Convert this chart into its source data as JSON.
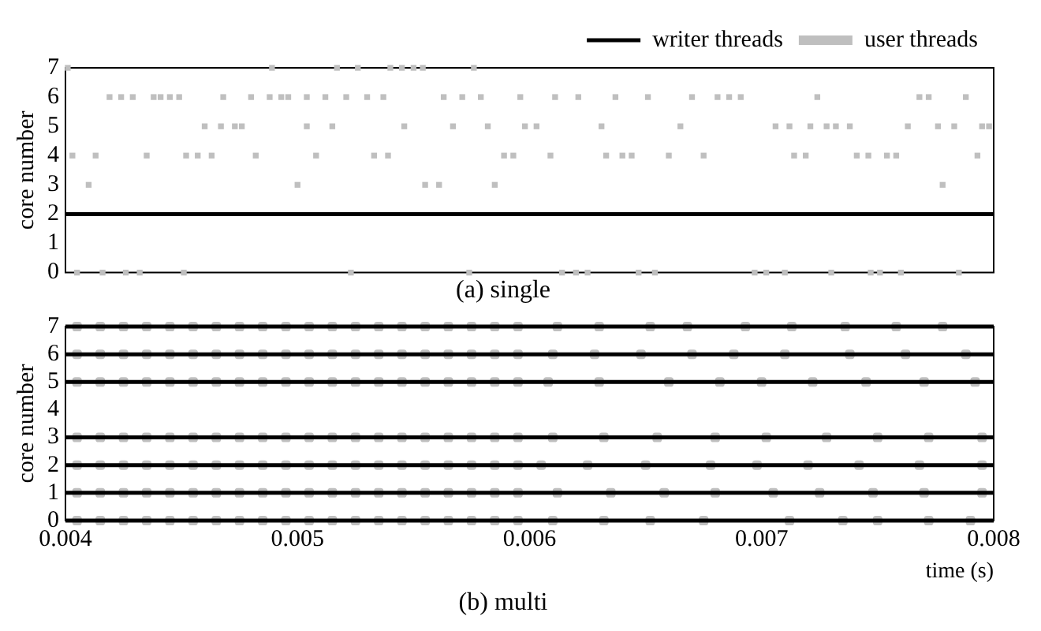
{
  "chart_data": [
    {
      "type": "scatter",
      "title": "(a) single",
      "ylabel": "core number",
      "xlim": [
        0.004,
        0.008
      ],
      "ylim": [
        0,
        7
      ],
      "yticks": [
        0,
        1,
        2,
        3,
        4,
        5,
        6,
        7
      ],
      "tick_labels": "y",
      "grid": false,
      "legend": "top right",
      "series": [
        {
          "name": "writer threads",
          "type": "line",
          "color": "#000000",
          "marker": "none",
          "x": [
            0.004,
            0.008
          ],
          "values": [
            2,
            2
          ]
        },
        {
          "name": "user threads",
          "type": "scatter",
          "color": "#bfbfbf",
          "marker": "square",
          "x": [
            0.00401,
            0.00489,
            0.00517,
            0.00526,
            0.0054,
            0.00545,
            0.0055,
            0.00554,
            0.00576,
            0.00419,
            0.00424,
            0.00429,
            0.00438,
            0.00441,
            0.00445,
            0.00449,
            0.00468,
            0.0048,
            0.00488,
            0.00493,
            0.00496,
            0.00504,
            0.00512,
            0.00521,
            0.0053,
            0.00537,
            0.00563,
            0.00571,
            0.00579,
            0.00596,
            0.00611,
            0.00621,
            0.00637,
            0.00651,
            0.0067,
            0.00681,
            0.00686,
            0.00691,
            0.00724,
            0.00768,
            0.00772,
            0.00788,
            0.0046,
            0.00467,
            0.00473,
            0.00476,
            0.00504,
            0.00515,
            0.00546,
            0.00567,
            0.00582,
            0.00598,
            0.00603,
            0.00631,
            0.00665,
            0.00706,
            0.00712,
            0.00721,
            0.00728,
            0.00732,
            0.00738,
            0.00763,
            0.00776,
            0.00783,
            0.00795,
            0.00798,
            0.00403,
            0.00413,
            0.00435,
            0.00452,
            0.00457,
            0.00463,
            0.00482,
            0.00508,
            0.00533,
            0.00539,
            0.00589,
            0.00593,
            0.00609,
            0.00633,
            0.0064,
            0.00644,
            0.0066,
            0.00675,
            0.00714,
            0.00719,
            0.00741,
            0.00746,
            0.00754,
            0.00758,
            0.00793,
            0.0041,
            0.005,
            0.00555,
            0.00561,
            0.00585,
            0.00778,
            0.00405,
            0.00416,
            0.00426,
            0.00432,
            0.00451,
            0.00523,
            0.00574,
            0.00614,
            0.0062,
            0.00625,
            0.00647,
            0.00654,
            0.00697,
            0.00702,
            0.0071,
            0.0073,
            0.00747,
            0.00751,
            0.0076,
            0.00785
          ],
          "values": [
            7,
            7,
            7,
            7,
            7,
            7,
            7,
            7,
            7,
            6,
            6,
            6,
            6,
            6,
            6,
            6,
            6,
            6,
            6,
            6,
            6,
            6,
            6,
            6,
            6,
            6,
            6,
            6,
            6,
            6,
            6,
            6,
            6,
            6,
            6,
            6,
            6,
            6,
            6,
            6,
            6,
            6,
            5,
            5,
            5,
            5,
            5,
            5,
            5,
            5,
            5,
            5,
            5,
            5,
            5,
            5,
            5,
            5,
            5,
            5,
            5,
            5,
            5,
            5,
            5,
            5,
            4,
            4,
            4,
            4,
            4,
            4,
            4,
            4,
            4,
            4,
            4,
            4,
            4,
            4,
            4,
            4,
            4,
            4,
            4,
            4,
            4,
            4,
            4,
            4,
            4,
            3,
            3,
            3,
            3,
            3,
            3,
            0,
            0,
            0,
            0,
            0,
            0,
            0,
            0,
            0,
            0,
            0,
            0,
            0,
            0,
            0,
            0,
            0,
            0,
            0,
            0
          ]
        }
      ]
    },
    {
      "type": "scatter",
      "title": "(b) multi",
      "xlabel": "time (s)",
      "ylabel": "core number",
      "xlim": [
        0.004,
        0.008
      ],
      "xticks": [
        0.004,
        0.005,
        0.006,
        0.007,
        0.008
      ],
      "ylim": [
        0,
        7
      ],
      "yticks": [
        0,
        1,
        2,
        3,
        4,
        5,
        6,
        7
      ],
      "grid": false,
      "series": [
        {
          "type": "line",
          "color": "#000000",
          "marker": "none",
          "x": [
            0.004,
            0.008
          ],
          "values": [
            0,
            0
          ]
        },
        {
          "type": "line",
          "color": "#000000",
          "marker": "none",
          "x": [
            0.004,
            0.008
          ],
          "values": [
            1,
            1
          ]
        },
        {
          "type": "line",
          "color": "#000000",
          "marker": "none",
          "x": [
            0.004,
            0.008
          ],
          "values": [
            2,
            2
          ]
        },
        {
          "type": "line",
          "color": "#000000",
          "marker": "none",
          "x": [
            0.004,
            0.008
          ],
          "values": [
            3,
            3
          ]
        },
        {
          "type": "line",
          "color": "#000000",
          "marker": "none",
          "x": [
            0.004,
            0.008
          ],
          "values": [
            5,
            5
          ]
        },
        {
          "type": "line",
          "color": "#000000",
          "marker": "none",
          "x": [
            0.004,
            0.008
          ],
          "values": [
            6,
            6
          ]
        },
        {
          "type": "line",
          "color": "#000000",
          "marker": "none",
          "x": [
            0.004,
            0.008
          ],
          "values": [
            7,
            7
          ]
        },
        {
          "type": "scatter",
          "color": "#bfbfbf",
          "marker": "square",
          "x": [
            0.00405,
            0.00415,
            0.00425,
            0.00435,
            0.00445,
            0.00455,
            0.00465,
            0.00475,
            0.00485,
            0.00495,
            0.00505,
            0.00515,
            0.00525,
            0.00535,
            0.00545,
            0.00555,
            0.00565,
            0.00575,
            0.00585,
            0.00595,
            0.0061,
            0.00632,
            0.00652,
            0.00675,
            0.00712,
            0.00735,
            0.0075,
            0.00772,
            0.0079,
            0.00405,
            0.00415,
            0.00425,
            0.00435,
            0.00445,
            0.00455,
            0.00465,
            0.00475,
            0.00485,
            0.00495,
            0.00505,
            0.00515,
            0.00525,
            0.00535,
            0.00545,
            0.00555,
            0.00565,
            0.00575,
            0.00585,
            0.00595,
            0.00612,
            0.00635,
            0.00658,
            0.0068,
            0.00705,
            0.00725,
            0.00748,
            0.0077,
            0.00795,
            0.00405,
            0.00415,
            0.00425,
            0.00435,
            0.00445,
            0.00455,
            0.00465,
            0.00475,
            0.00485,
            0.00495,
            0.00505,
            0.00515,
            0.00525,
            0.00535,
            0.00545,
            0.00555,
            0.00565,
            0.00575,
            0.00585,
            0.00595,
            0.00605,
            0.00625,
            0.0065,
            0.00678,
            0.00698,
            0.0072,
            0.00742,
            0.00768,
            0.00795,
            0.00405,
            0.00415,
            0.00425,
            0.00435,
            0.00445,
            0.00455,
            0.00465,
            0.00475,
            0.00485,
            0.00495,
            0.00505,
            0.00515,
            0.00525,
            0.00535,
            0.00545,
            0.00555,
            0.00565,
            0.00575,
            0.00585,
            0.00595,
            0.0061,
            0.00632,
            0.00655,
            0.0068,
            0.00702,
            0.00728,
            0.0075,
            0.00772,
            0.00795,
            0.00405,
            0.00415,
            0.00425,
            0.00435,
            0.00445,
            0.00455,
            0.00465,
            0.00475,
            0.00485,
            0.00495,
            0.00505,
            0.00515,
            0.00525,
            0.00535,
            0.00545,
            0.00555,
            0.00565,
            0.00575,
            0.00585,
            0.00595,
            0.00608,
            0.0063,
            0.0066,
            0.00682,
            0.007,
            0.00722,
            0.00745,
            0.0077,
            0.00792,
            0.00405,
            0.00415,
            0.00425,
            0.00435,
            0.00445,
            0.00455,
            0.00465,
            0.00475,
            0.00485,
            0.00495,
            0.00505,
            0.00515,
            0.00525,
            0.00535,
            0.00545,
            0.00555,
            0.00565,
            0.00575,
            0.00585,
            0.00595,
            0.0061,
            0.00628,
            0.00648,
            0.0067,
            0.00688,
            0.0071,
            0.00738,
            0.00762,
            0.00788,
            0.00405,
            0.00415,
            0.00425,
            0.00435,
            0.00445,
            0.00455,
            0.00465,
            0.00475,
            0.00485,
            0.00495,
            0.00505,
            0.00515,
            0.00525,
            0.00535,
            0.00545,
            0.00555,
            0.00565,
            0.00575,
            0.00585,
            0.00595,
            0.00612,
            0.0063,
            0.00652,
            0.00668,
            0.00693,
            0.00713,
            0.00736,
            0.00758,
            0.00778
          ],
          "values": [
            0,
            0,
            0,
            0,
            0,
            0,
            0,
            0,
            0,
            0,
            0,
            0,
            0,
            0,
            0,
            0,
            0,
            0,
            0,
            0,
            0,
            0,
            0,
            0,
            0,
            0,
            0,
            0,
            0,
            1,
            1,
            1,
            1,
            1,
            1,
            1,
            1,
            1,
            1,
            1,
            1,
            1,
            1,
            1,
            1,
            1,
            1,
            1,
            1,
            1,
            1,
            1,
            1,
            1,
            1,
            1,
            1,
            1,
            2,
            2,
            2,
            2,
            2,
            2,
            2,
            2,
            2,
            2,
            2,
            2,
            2,
            2,
            2,
            2,
            2,
            2,
            2,
            2,
            2,
            2,
            2,
            2,
            2,
            2,
            2,
            2,
            2,
            3,
            3,
            3,
            3,
            3,
            3,
            3,
            3,
            3,
            3,
            3,
            3,
            3,
            3,
            3,
            3,
            3,
            3,
            3,
            3,
            3,
            3,
            3,
            3,
            3,
            3,
            3,
            3,
            3,
            5,
            5,
            5,
            5,
            5,
            5,
            5,
            5,
            5,
            5,
            5,
            5,
            5,
            5,
            5,
            5,
            5,
            5,
            5,
            5,
            5,
            5,
            5,
            5,
            5,
            5,
            5,
            5,
            5,
            6,
            6,
            6,
            6,
            6,
            6,
            6,
            6,
            6,
            6,
            6,
            6,
            6,
            6,
            6,
            6,
            6,
            6,
            6,
            6,
            6,
            6,
            6,
            6,
            6,
            6,
            6,
            6,
            6,
            7,
            7,
            7,
            7,
            7,
            7,
            7,
            7,
            7,
            7,
            7,
            7,
            7,
            7,
            7,
            7,
            7,
            7,
            7,
            7,
            7,
            7,
            7,
            7,
            7,
            7,
            7,
            7,
            7
          ]
        }
      ]
    }
  ]
}
